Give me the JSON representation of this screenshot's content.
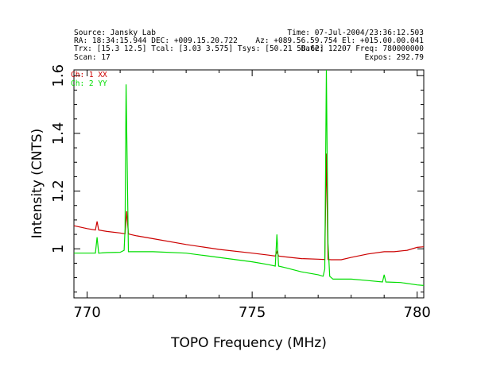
{
  "header": {
    "left_lines": [
      "Source: Jansky Lab",
      "RA: 18:34:15.944  DEC: +009.15.20.722",
      "Trx: [15.3 12.5]  Tcal: [3.03 3.575]  Tsys: [50.21 58.62]",
      "Scan: 17"
    ],
    "right_lines": [
      "Time: 07-Jul-2004/23:36:12.503",
      "Az: +089.56.59.754  El: +015.00.00.041",
      "Date: 12207  Freq: 780000000",
      "Expos: 292.79"
    ]
  },
  "chart_data": {
    "type": "line",
    "xlabel": "TOPO Frequency (MHz)",
    "ylabel": "Intensity (CNTS)",
    "xlim": [
      769.6,
      780.2
    ],
    "ylim": [
      0.83,
      1.62
    ],
    "xticks": [
      770,
      775,
      780
    ],
    "yticks": [
      1,
      1.2,
      1.4,
      1.6
    ],
    "legend_position": "top-left",
    "series": [
      {
        "name": "Ch: 1 XX",
        "color": "#cc0000",
        "x": [
          769.6,
          770.0,
          770.25,
          770.3,
          770.35,
          770.6,
          771.0,
          771.15,
          771.2,
          771.25,
          771.3,
          771.5,
          772.0,
          773.0,
          774.0,
          775.0,
          775.5,
          775.7,
          775.75,
          775.8,
          776.0,
          776.5,
          777.0,
          777.2,
          777.25,
          777.3,
          777.4,
          777.7,
          778.0,
          778.5,
          779.0,
          779.3,
          779.7,
          780.0,
          780.2
        ],
        "y": [
          1.08,
          1.07,
          1.065,
          1.095,
          1.065,
          1.06,
          1.055,
          1.052,
          1.13,
          1.052,
          1.05,
          1.045,
          1.035,
          1.015,
          0.998,
          0.985,
          0.978,
          0.975,
          0.99,
          0.975,
          0.972,
          0.966,
          0.964,
          0.963,
          1.33,
          0.963,
          0.962,
          0.962,
          0.97,
          0.982,
          0.99,
          0.99,
          0.995,
          1.005,
          1.007
        ]
      },
      {
        "name": "Ch: 2 YY",
        "color": "#00dd00",
        "x": [
          769.6,
          770.0,
          770.25,
          770.3,
          770.35,
          770.6,
          771.0,
          771.12,
          771.15,
          771.18,
          771.25,
          771.32,
          771.5,
          772.0,
          773.0,
          774.0,
          775.0,
          775.5,
          775.7,
          775.75,
          775.8,
          776.0,
          776.5,
          777.0,
          777.15,
          777.2,
          777.25,
          777.3,
          777.35,
          777.45,
          778.0,
          778.5,
          778.95,
          779.0,
          779.05,
          779.5,
          780.0,
          780.2
        ],
        "y": [
          0.985,
          0.985,
          0.985,
          1.04,
          0.985,
          0.987,
          0.988,
          0.995,
          1.07,
          1.57,
          0.99,
          0.99,
          0.99,
          0.99,
          0.985,
          0.97,
          0.955,
          0.945,
          0.94,
          1.05,
          0.94,
          0.935,
          0.92,
          0.91,
          0.905,
          0.93,
          1.62,
          1.02,
          0.905,
          0.895,
          0.895,
          0.89,
          0.885,
          0.91,
          0.885,
          0.883,
          0.875,
          0.873
        ]
      }
    ]
  }
}
